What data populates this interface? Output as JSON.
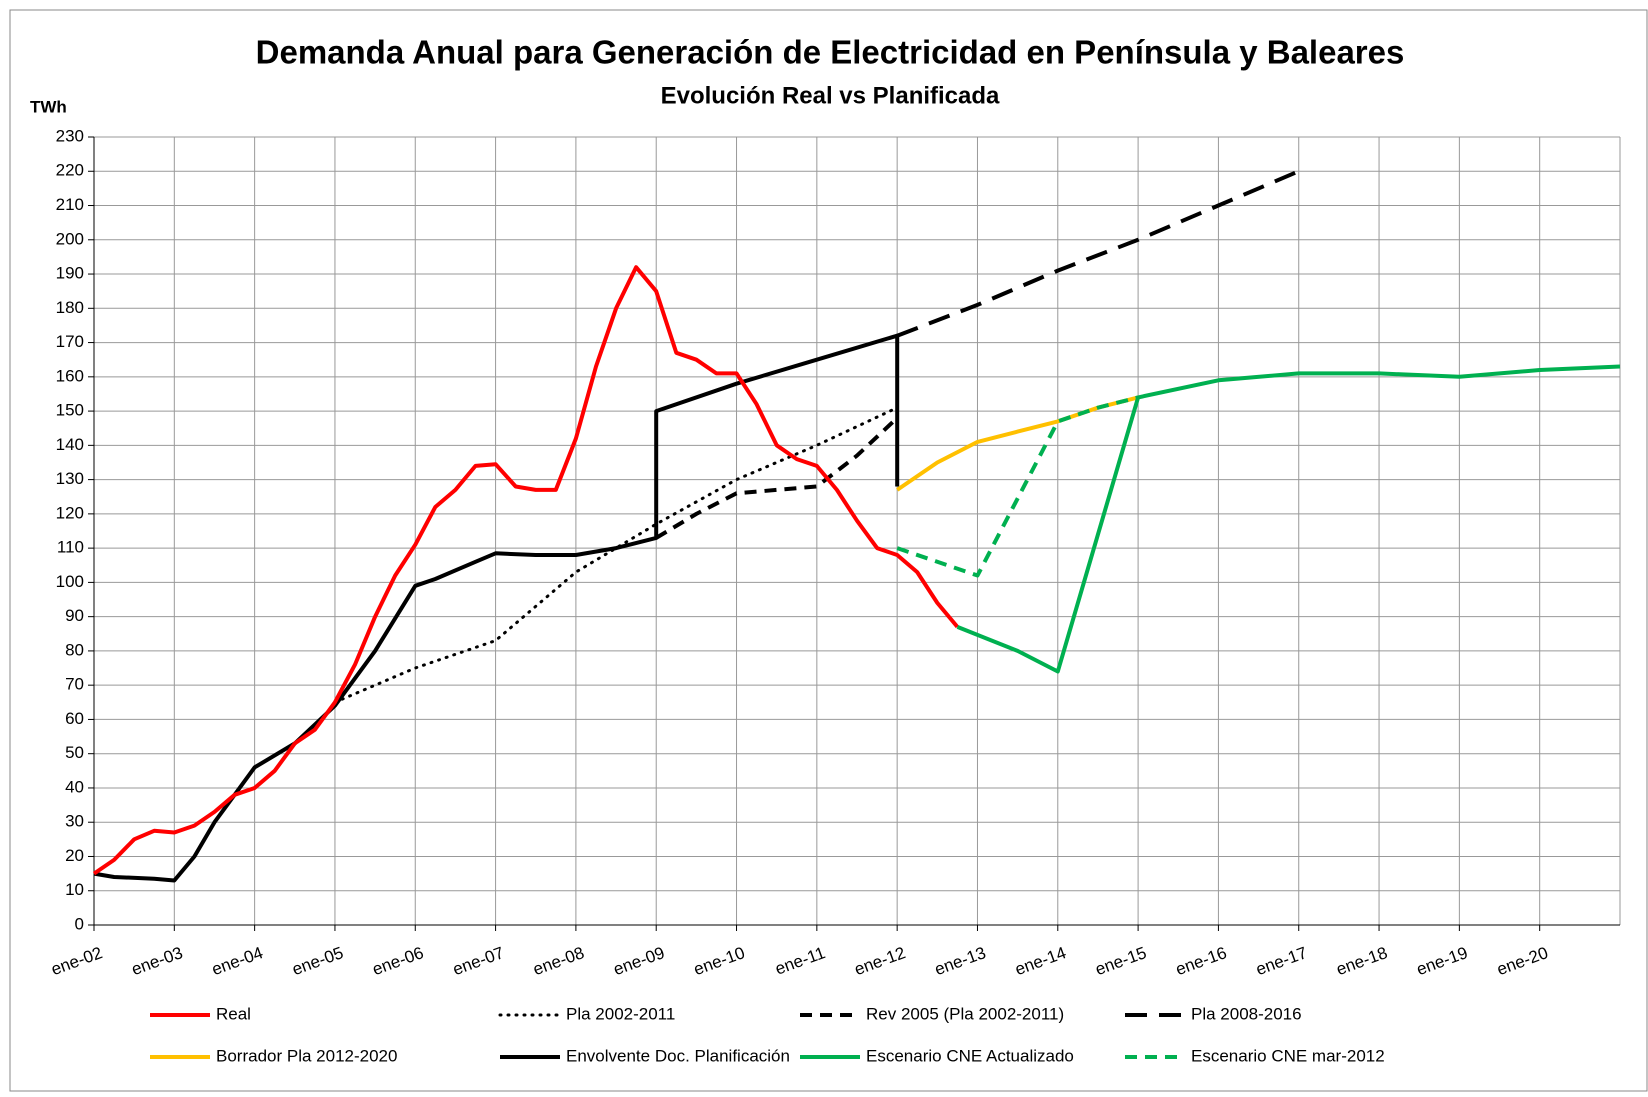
{
  "chart_data": {
    "type": "line",
    "title": "Demanda Anual para Generación de Electricidad en Península y Baleares",
    "subtitle": "Evolución Real vs Planificada",
    "y_label": "TWh",
    "xlim": [
      "2002-01",
      "2021-01"
    ],
    "xticks": [
      {
        "value": "2002-01",
        "label": "ene-02"
      },
      {
        "value": "2003-01",
        "label": "ene-03"
      },
      {
        "value": "2004-01",
        "label": "ene-04"
      },
      {
        "value": "2005-01",
        "label": "ene-05"
      },
      {
        "value": "2006-01",
        "label": "ene-06"
      },
      {
        "value": "2007-01",
        "label": "ene-07"
      },
      {
        "value": "2008-01",
        "label": "ene-08"
      },
      {
        "value": "2009-01",
        "label": "ene-09"
      },
      {
        "value": "2010-01",
        "label": "ene-10"
      },
      {
        "value": "2011-01",
        "label": "ene-11"
      },
      {
        "value": "2012-01",
        "label": "ene-12"
      },
      {
        "value": "2013-01",
        "label": "ene-13"
      },
      {
        "value": "2014-01",
        "label": "ene-14"
      },
      {
        "value": "2015-01",
        "label": "ene-15"
      },
      {
        "value": "2016-01",
        "label": "ene-16"
      },
      {
        "value": "2017-01",
        "label": "ene-17"
      },
      {
        "value": "2018-01",
        "label": "ene-18"
      },
      {
        "value": "2019-01",
        "label": "ene-19"
      },
      {
        "value": "2020-01",
        "label": "ene-20"
      }
    ],
    "ylim": [
      0,
      230
    ],
    "yticks": [
      0,
      10,
      20,
      30,
      40,
      50,
      60,
      70,
      80,
      90,
      100,
      110,
      120,
      130,
      140,
      150,
      160,
      170,
      180,
      190,
      200,
      210,
      220,
      230
    ],
    "grid": true,
    "legend": "bottom",
    "series": [
      {
        "name": "Real",
        "color": "#ff0000",
        "dash": "solid",
        "x": [
          "2002-01",
          "2002-04",
          "2002-07",
          "2002-10",
          "2003-01",
          "2003-04",
          "2003-07",
          "2003-10",
          "2004-01",
          "2004-04",
          "2004-07",
          "2004-10",
          "2005-01",
          "2005-04",
          "2005-07",
          "2005-10",
          "2006-01",
          "2006-04",
          "2006-07",
          "2006-10",
          "2007-01",
          "2007-04",
          "2007-07",
          "2007-10",
          "2008-01",
          "2008-04",
          "2008-07",
          "2008-10",
          "2009-01",
          "2009-04",
          "2009-07",
          "2009-10",
          "2010-01",
          "2010-04",
          "2010-07",
          "2010-10",
          "2011-01",
          "2011-04",
          "2011-07",
          "2011-10",
          "2012-01",
          "2012-04",
          "2012-07",
          "2012-10"
        ],
        "values": [
          15,
          19,
          25,
          27.5,
          27,
          29,
          33,
          38,
          40,
          45,
          53,
          57,
          65,
          76,
          90,
          102,
          111,
          122,
          127,
          134,
          134.5,
          128,
          127,
          127,
          142,
          163,
          180,
          192,
          185,
          167,
          165,
          161,
          161,
          152,
          140,
          136,
          134,
          127,
          118,
          110,
          108,
          103,
          94,
          87
        ]
      },
      {
        "name": "Pla 2002-2011",
        "color": "#000000",
        "dash": "dotted",
        "x": [
          "2005-01",
          "2006-01",
          "2007-01",
          "2008-01",
          "2009-01",
          "2010-01",
          "2011-01",
          "2012-01"
        ],
        "values": [
          65,
          75,
          83,
          103,
          117,
          130,
          140,
          151
        ]
      },
      {
        "name": "Rev 2005 (Pla 2002-2011)",
        "color": "#000000",
        "dash": "dashed",
        "x": [
          "2009-01",
          "2009-07",
          "2010-01",
          "2010-07",
          "2011-01",
          "2011-07",
          "2012-01"
        ],
        "values": [
          113,
          120,
          126,
          127,
          128,
          137,
          148
        ]
      },
      {
        "name": "Pla 2008-2016",
        "color": "#000000",
        "dash": "long-dashed",
        "x": [
          "2012-01",
          "2013-01",
          "2014-01",
          "2015-01",
          "2016-01",
          "2017-01"
        ],
        "values": [
          172,
          181,
          191,
          200,
          210,
          220
        ]
      },
      {
        "name": "Borrador Pla 2012-2020",
        "color": "#ffc000",
        "dash": "solid",
        "x": [
          "2012-01",
          "2012-07",
          "2013-01",
          "2013-07",
          "2014-01",
          "2014-07",
          "2015-01"
        ],
        "values": [
          127,
          135,
          141,
          144,
          147,
          151,
          154
        ]
      },
      {
        "name": "Envolvente Doc. Planificación",
        "color": "#000000",
        "dash": "solid",
        "x": [
          "2002-01",
          "2002-04",
          "2002-10",
          "2003-01",
          "2003-04",
          "2003-07",
          "2003-10",
          "2004-01",
          "2004-07",
          "2005-01",
          "2005-07",
          "2006-01",
          "2006-04",
          "2006-10",
          "2007-01",
          "2007-07",
          "2008-01",
          "2008-07",
          "2009-01",
          "2009-01",
          "2010-01",
          "2011-01",
          "2012-01",
          "2012-01"
        ],
        "values": [
          15,
          14,
          13.5,
          13,
          20,
          30,
          38,
          46,
          53,
          64,
          80,
          99,
          101,
          106,
          108.5,
          108,
          108,
          110,
          113,
          150,
          158,
          165,
          172,
          128
        ]
      },
      {
        "name": "Escenario CNE Actualizado",
        "color": "#00b050",
        "dash": "solid",
        "x": [
          "2012-10",
          "2013-07",
          "2014-01",
          "2015-01",
          "2016-01",
          "2017-01",
          "2018-01",
          "2019-01",
          "2020-01",
          "2021-01"
        ],
        "values": [
          87,
          80,
          74,
          154,
          159,
          161,
          161,
          160,
          162,
          163
        ]
      },
      {
        "name": "Escenario CNE mar-2012",
        "color": "#00b050",
        "dash": "dashed",
        "x": [
          "2012-01",
          "2013-01",
          "2014-01",
          "2014-07",
          "2015-01"
        ],
        "values": [
          110,
          102,
          147,
          151,
          154
        ]
      }
    ]
  }
}
